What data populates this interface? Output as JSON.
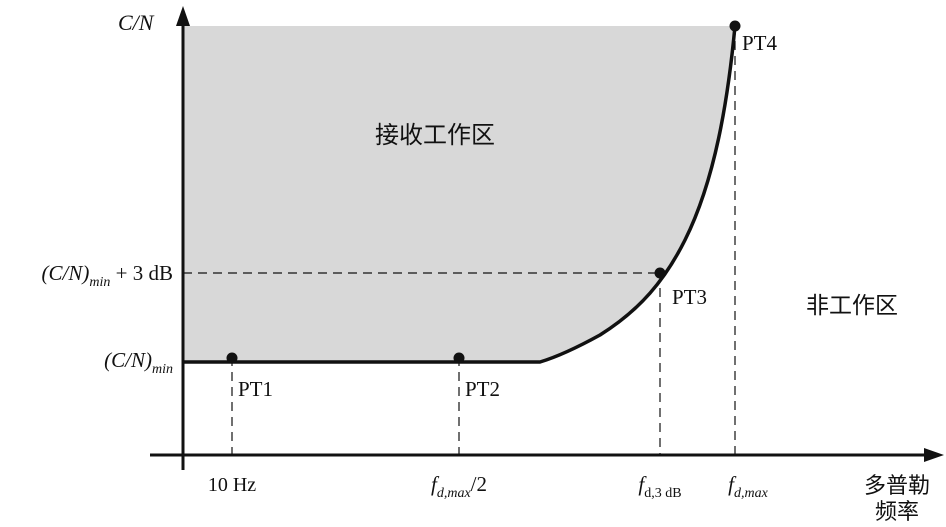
{
  "axes": {
    "y_label": "C/N",
    "x_label_line1": "多普勒",
    "x_label_line2": "频率"
  },
  "y_ticks": {
    "min": {
      "base": "(C/N)",
      "sub": "min",
      "suffix": ""
    },
    "min_plus_3db": {
      "base": "(C/N)",
      "sub": "min",
      "suffix": " + 3 dB"
    }
  },
  "x_ticks": {
    "hz10": "10 Hz",
    "fdmax_half": {
      "base": "f",
      "sub": "d,max",
      "suffix": "/2"
    },
    "fd3db": {
      "base": "f",
      "sub": "d,3 dB"
    },
    "fdmax": {
      "base": "f",
      "sub": "d,max"
    }
  },
  "points": {
    "pt1": "PT1",
    "pt2": "PT2",
    "pt3": "PT3",
    "pt4": "PT4"
  },
  "regions": {
    "receive": "接收工作区",
    "non_work": "非工作区"
  },
  "colors": {
    "region_fill": "#d8d8d8",
    "line": "#111111",
    "background": "#ffffff"
  }
}
